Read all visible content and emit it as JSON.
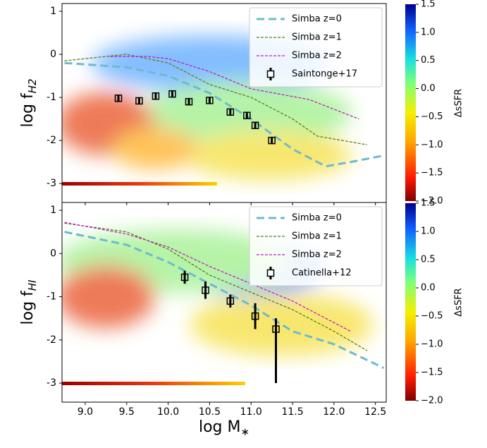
{
  "chart_data": [
    {
      "type": "scatter",
      "ylabel": "log f",
      "ylabel_sub": "H2",
      "xlim": [
        8.72,
        12.63
      ],
      "ylim": [
        -3.44,
        1.18
      ],
      "xticks": [
        9,
        9.5,
        10,
        10.5,
        11,
        11.5,
        12,
        12.5
      ],
      "yticks": [
        -3,
        -2,
        -1,
        0,
        1
      ],
      "legend": "upper right",
      "colorbar": {
        "label": "ΔsSFR",
        "lim": [
          -2,
          1.5
        ],
        "ticks": [
          {
            "value": 1.5,
            "label": "1.5"
          },
          {
            "value": 1,
            "label": "1.0"
          },
          {
            "value": 0.5,
            "label": "0.5"
          },
          {
            "value": 0,
            "label": "0.0"
          },
          {
            "value": -0.5,
            "label": "−0.5"
          },
          {
            "value": -1,
            "label": "−1.0"
          },
          {
            "value": -1.5,
            "label": "−1.5"
          },
          {
            "value": -2,
            "label": "−2.0"
          }
        ]
      },
      "series": [
        {
          "name": "Simba z=0",
          "color": "#6fb9cf",
          "style": "thick-dash",
          "x": [
            8.75,
            9.5,
            10,
            10.5,
            11,
            11.5,
            11.9,
            12.2,
            12.6
          ],
          "values": [
            -0.2,
            -0.3,
            -0.5,
            -0.9,
            -1.5,
            -2.2,
            -2.6,
            -2.5,
            -2.35
          ]
        },
        {
          "name": "Simba z=1",
          "color": "#5b7f1c",
          "style": "dash",
          "x": [
            8.75,
            9.5,
            10,
            10.5,
            11,
            11.5,
            11.8,
            12.4
          ],
          "values": [
            -0.15,
            0,
            -0.2,
            -0.7,
            -1.0,
            -1.5,
            -1.9,
            -2.1
          ]
        },
        {
          "name": "Simba z=2",
          "color": "#c41fc4",
          "style": "dash",
          "x": [
            9.3,
            9.75,
            10,
            10.5,
            11,
            11.7,
            12.3
          ],
          "values": [
            -0.05,
            -0.05,
            -0.1,
            -0.4,
            -0.8,
            -1.05,
            -1.5
          ]
        },
        {
          "name": "Saintonge+17",
          "color": "#000000",
          "style": "errorbar",
          "x": [
            9.4,
            9.65,
            9.85,
            10.05,
            10.25,
            10.5,
            10.75,
            10.95,
            11.05,
            11.25
          ],
          "values": [
            -1.02,
            -1.08,
            -0.97,
            -0.92,
            -1.1,
            -1.07,
            -1.34,
            -1.42,
            -1.65,
            -2.0
          ],
          "yerr_low": [
            0.08,
            0.08,
            0.07,
            0.07,
            0.07,
            0.07,
            0.08,
            0.08,
            0.08,
            0.08
          ],
          "yerr_high": [
            0.08,
            0.08,
            0.07,
            0.07,
            0.07,
            0.07,
            0.08,
            0.08,
            0.08,
            0.08
          ]
        }
      ]
    },
    {
      "type": "scatter",
      "ylabel": "log f",
      "ylabel_sub": "HI",
      "xlabel": "log M",
      "xlabel_sub": "∗",
      "xlim": [
        8.72,
        12.63
      ],
      "ylim": [
        -3.44,
        1.18
      ],
      "xticks": [
        {
          "value": 9,
          "label": "9.0"
        },
        9.5,
        {
          "value": 10,
          "label": "10.0"
        },
        10.5,
        {
          "value": 11,
          "label": "11.0"
        },
        11.5,
        {
          "value": 12,
          "label": "12.0"
        },
        12.5
      ],
      "yticks": [
        -3,
        -2,
        -1,
        0,
        1
      ],
      "legend": "upper right",
      "colorbar": {
        "label": "ΔsSFR",
        "lim": [
          -2,
          1.5
        ],
        "ticks": [
          {
            "value": 1.5,
            "label": "1.5"
          },
          {
            "value": 1,
            "label": "1.0"
          },
          {
            "value": 0.5,
            "label": "0.5"
          },
          {
            "value": 0,
            "label": "0.0"
          },
          {
            "value": -0.5,
            "label": "−0.5"
          },
          {
            "value": -1,
            "label": "−1.0"
          },
          {
            "value": -1.5,
            "label": "−1.5"
          },
          {
            "value": -2,
            "label": "−2.0"
          }
        ]
      },
      "series": [
        {
          "name": "Simba z=0",
          "color": "#6fb9cf",
          "style": "thick-dash",
          "x": [
            8.75,
            9.5,
            10,
            10.5,
            11,
            11.5,
            12,
            12.6
          ],
          "values": [
            0.5,
            0.2,
            -0.2,
            -0.7,
            -1.2,
            -1.8,
            -2.1,
            -2.65
          ]
        },
        {
          "name": "Simba z=1",
          "color": "#5b7f1c",
          "style": "dash",
          "x": [
            8.75,
            9.5,
            10,
            10.5,
            11,
            11.5,
            12,
            12.4
          ],
          "values": [
            0.7,
            0.5,
            0.1,
            -0.5,
            -0.9,
            -1.3,
            -1.8,
            -2.25
          ]
        },
        {
          "name": "Simba z=2",
          "color": "#c41fc4",
          "style": "dash",
          "x": [
            8.75,
            9.5,
            10,
            10.5,
            11,
            11.5,
            12.2
          ],
          "values": [
            0.72,
            0.45,
            0.15,
            -0.3,
            -0.7,
            -1.1,
            -1.8
          ]
        },
        {
          "name": "Catinella+12",
          "color": "#000000",
          "style": "errorbar",
          "x": [
            10.2,
            10.45,
            10.75,
            11.05,
            11.3
          ],
          "values": [
            -0.55,
            -0.85,
            -1.1,
            -1.45,
            -1.75
          ],
          "yerr_low": [
            0.15,
            0.2,
            0.15,
            0.3,
            1.25
          ],
          "yerr_high": [
            0.15,
            0.2,
            0.15,
            0.3,
            0.25
          ]
        }
      ]
    }
  ]
}
